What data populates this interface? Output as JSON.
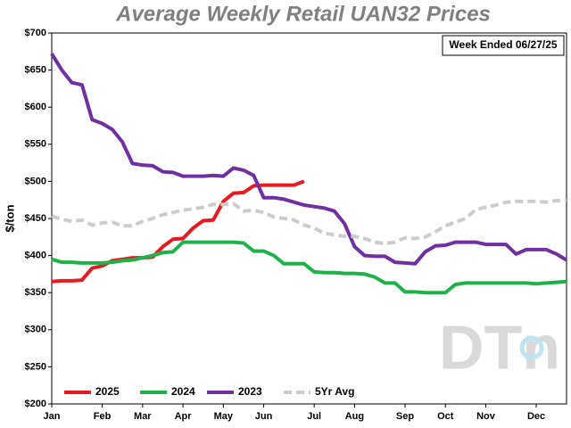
{
  "chart_data": {
    "type": "line",
    "title": "Average Weekly Retail UAN32 Prices",
    "annotation": "Week Ended 06/27/25",
    "watermark": "DTn",
    "y_label": "$/ton",
    "categories": [
      "Jan",
      null,
      null,
      null,
      null,
      "Feb",
      null,
      null,
      null,
      "Mar",
      null,
      null,
      null,
      "Apr",
      null,
      null,
      null,
      "May",
      null,
      null,
      null,
      "Jun",
      null,
      null,
      null,
      null,
      "Jul",
      null,
      null,
      null,
      "Aug",
      null,
      null,
      null,
      null,
      "Sep",
      null,
      null,
      null,
      "Oct",
      null,
      null,
      null,
      "Nov",
      null,
      null,
      null,
      null,
      "Dec",
      null,
      null,
      null
    ],
    "ylim": [
      200,
      700
    ],
    "yticks": [
      {
        "value": 200,
        "label": "$200"
      },
      {
        "value": 250,
        "label": "$250"
      },
      {
        "value": 300,
        "label": "$300"
      },
      {
        "value": 350,
        "label": "$350"
      },
      {
        "value": 400,
        "label": "$400"
      },
      {
        "value": 450,
        "label": "$450"
      },
      {
        "value": 500,
        "label": "$500"
      },
      {
        "value": 550,
        "label": "$550"
      },
      {
        "value": 600,
        "label": "$600"
      },
      {
        "value": 650,
        "label": "$650"
      },
      {
        "value": 700,
        "label": "$700"
      }
    ],
    "grid": false,
    "legend": "bottom-left",
    "series": [
      {
        "name": "2025",
        "color": "#e8191f",
        "dash": false,
        "values": [
          365,
          366,
          366,
          367,
          383,
          386,
          393,
          395,
          397,
          397,
          398,
          412,
          422,
          423,
          437,
          447,
          448,
          473,
          484,
          485,
          494,
          495,
          495,
          495,
          495,
          500,
          null,
          null,
          null,
          null,
          null,
          null,
          null,
          null,
          null,
          null,
          null,
          null,
          null,
          null,
          null,
          null,
          null,
          null,
          null,
          null,
          null,
          null,
          null,
          null,
          null,
          null
        ]
      },
      {
        "name": "2024",
        "color": "#1fb24a",
        "dash": false,
        "values": [
          395,
          391,
          391,
          390,
          390,
          390,
          391,
          393,
          394,
          397,
          400,
          404,
          405,
          418,
          418,
          418,
          418,
          418,
          418,
          417,
          406,
          406,
          400,
          389,
          389,
          389,
          378,
          377,
          377,
          376,
          376,
          375,
          371,
          363,
          363,
          351,
          351,
          350,
          350,
          350,
          361,
          363,
          363,
          363,
          363,
          363,
          363,
          363,
          362,
          363,
          364,
          365
        ]
      },
      {
        "name": "2023",
        "color": "#7030a0",
        "dash": false,
        "values": [
          672,
          650,
          633,
          630,
          583,
          578,
          570,
          553,
          524,
          522,
          521,
          513,
          512,
          507,
          507,
          507,
          508,
          507,
          518,
          515,
          508,
          478,
          478,
          476,
          472,
          468,
          466,
          464,
          460,
          443,
          412,
          400,
          399,
          399,
          391,
          390,
          389,
          405,
          413,
          414,
          418,
          418,
          418,
          415,
          415,
          415,
          402,
          408,
          408,
          408,
          402,
          394
        ]
      },
      {
        "name": "5Yr Avg",
        "color": "#cccccc",
        "dash": true,
        "values": [
          453,
          449,
          446,
          448,
          441,
          444,
          445,
          440,
          440,
          446,
          450,
          455,
          458,
          461,
          463,
          465,
          469,
          469,
          470,
          460,
          461,
          458,
          452,
          450,
          448,
          441,
          437,
          430,
          428,
          426,
          426,
          423,
          418,
          416,
          418,
          424,
          423,
          425,
          432,
          440,
          445,
          450,
          462,
          465,
          468,
          472,
          473,
          473,
          473,
          472,
          474,
          474
        ]
      }
    ]
  }
}
